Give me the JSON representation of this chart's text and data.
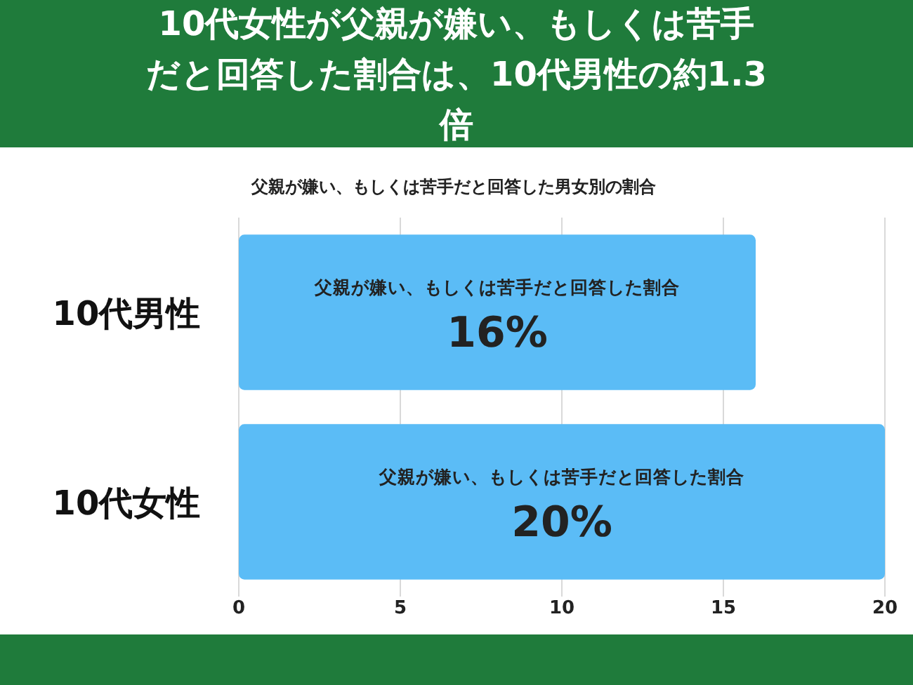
{
  "chart_data": {
    "type": "bar",
    "orientation": "horizontal",
    "title": "10代女性が父親が嫌い、もしくは苦手だと回答した割合は、10代男性の約1.3倍",
    "subtitle": "父親が嫌い、もしくは苦手だと回答した男女別の割合",
    "categories": [
      "10代男性",
      "10代女性"
    ],
    "series": [
      {
        "name": "父親が嫌い、もしくは苦手だと回答した割合",
        "color": "#5bbcf6",
        "values": [
          16,
          20
        ],
        "value_labels": [
          "16%",
          "20%"
        ]
      }
    ],
    "xlim": [
      0,
      20
    ],
    "xticks": [
      0,
      5,
      10,
      15,
      20
    ],
    "grid": "x"
  }
}
